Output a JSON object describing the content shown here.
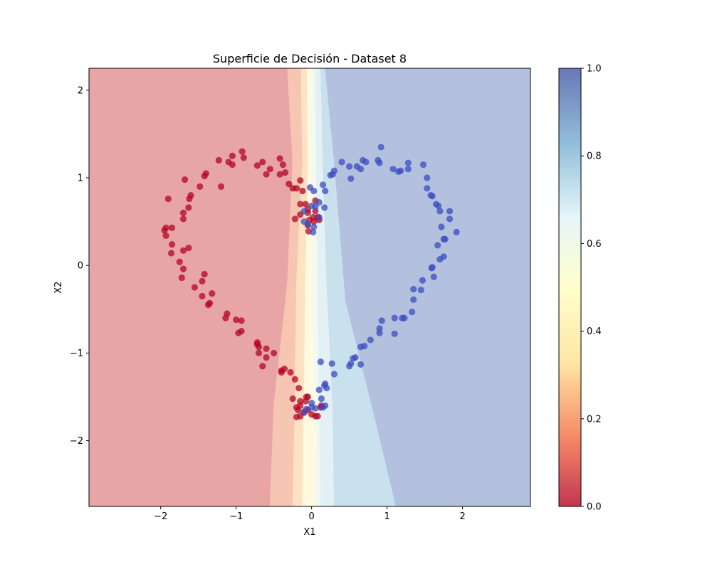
{
  "chart_data": {
    "type": "scatter",
    "title": "Superficie de Decisión - Dataset 8",
    "xlabel": "X1",
    "ylabel": "X2",
    "xlim": [
      -2.95,
      2.9
    ],
    "ylim": [
      -2.75,
      2.25
    ],
    "xticks": [
      -2,
      -1,
      0,
      1,
      2
    ],
    "yticks": [
      -2,
      -1,
      0,
      1,
      2
    ],
    "xtick_labels": [
      "−2",
      "−1",
      "0",
      "1",
      "2"
    ],
    "ytick_labels": [
      "−2",
      "−1",
      "0",
      "1",
      "2"
    ],
    "grid": false,
    "background": {
      "type": "filled_contour",
      "value_range": [
        0,
        1
      ],
      "boundaries": [
        {
          "level": 0.2,
          "points": [
            [
              -0.55,
              -2.75
            ],
            [
              -0.5,
              -1.6
            ],
            [
              -0.32,
              -0.2
            ],
            [
              -0.25,
              1.2
            ],
            [
              -0.32,
              2.25
            ]
          ]
        },
        {
          "level": 0.3,
          "points": [
            [
              -0.25,
              -2.75
            ],
            [
              -0.22,
              -1.6
            ],
            [
              -0.2,
              -0.2
            ],
            [
              -0.12,
              1.2
            ],
            [
              -0.14,
              2.25
            ]
          ]
        },
        {
          "level": 0.4,
          "points": [
            [
              -0.12,
              -2.75
            ],
            [
              -0.1,
              -1.6
            ],
            [
              -0.08,
              -0.2
            ],
            [
              -0.05,
              1.2
            ],
            [
              -0.06,
              2.25
            ]
          ]
        },
        {
          "level": 0.5,
          "points": [
            [
              0.05,
              -2.75
            ],
            [
              0.04,
              -1.6
            ],
            [
              0.0,
              -0.2
            ],
            [
              0.0,
              1.2
            ],
            [
              0.0,
              2.25
            ]
          ]
        },
        {
          "level": 0.6,
          "points": [
            [
              0.12,
              -2.75
            ],
            [
              0.1,
              -1.6
            ],
            [
              0.08,
              -0.2
            ],
            [
              0.06,
              1.2
            ],
            [
              0.05,
              2.25
            ]
          ]
        },
        {
          "level": 0.7,
          "points": [
            [
              0.3,
              -2.75
            ],
            [
              0.28,
              -1.6
            ],
            [
              0.2,
              -0.2
            ],
            [
              0.15,
              1.2
            ],
            [
              0.12,
              2.25
            ]
          ]
        },
        {
          "level": 0.8,
          "points": [
            [
              1.12,
              -2.75
            ],
            [
              0.8,
              -1.6
            ],
            [
              0.45,
              -0.4
            ],
            [
              0.3,
              1.2
            ],
            [
              0.18,
              2.25
            ]
          ]
        }
      ]
    },
    "series": [
      {
        "class": 0,
        "color": "#b40426",
        "points": [
          [
            -0.92,
            1.3
          ],
          [
            -1.05,
            1.25
          ],
          [
            -0.9,
            1.23
          ],
          [
            -1.23,
            1.2
          ],
          [
            -1.1,
            1.18
          ],
          [
            -1.05,
            1.15
          ],
          [
            -0.65,
            1.18
          ],
          [
            -0.72,
            1.14
          ],
          [
            -0.42,
            1.22
          ],
          [
            -0.38,
            1.15
          ],
          [
            -0.35,
            1.06
          ],
          [
            -0.42,
            1.04
          ],
          [
            -0.55,
            1.1
          ],
          [
            -0.6,
            1.04
          ],
          [
            -0.3,
            0.93
          ],
          [
            -1.4,
            1.05
          ],
          [
            -1.42,
            1.02
          ],
          [
            -1.68,
            0.98
          ],
          [
            -1.2,
            0.9
          ],
          [
            -1.48,
            0.9
          ],
          [
            -1.6,
            0.8
          ],
          [
            -1.62,
            0.76
          ],
          [
            -1.9,
            0.76
          ],
          [
            -1.63,
            0.66
          ],
          [
            -1.7,
            0.6
          ],
          [
            -1.7,
            0.53
          ],
          [
            -1.85,
            0.43
          ],
          [
            -1.93,
            0.43
          ],
          [
            -1.95,
            0.4
          ],
          [
            -1.93,
            0.34
          ],
          [
            -1.85,
            0.24
          ],
          [
            -1.63,
            0.2
          ],
          [
            -1.7,
            0.17
          ],
          [
            -1.86,
            0.14
          ],
          [
            -1.75,
            0.04
          ],
          [
            -1.7,
            -0.04
          ],
          [
            -1.42,
            -0.1
          ],
          [
            -1.72,
            -0.14
          ],
          [
            -1.45,
            -0.18
          ],
          [
            -1.55,
            -0.25
          ],
          [
            -1.32,
            -0.32
          ],
          [
            -1.45,
            -0.35
          ],
          [
            -1.35,
            -0.43
          ],
          [
            -1.37,
            -0.45
          ],
          [
            -1.12,
            -0.55
          ],
          [
            -1.14,
            -0.6
          ],
          [
            -1.0,
            -0.62
          ],
          [
            -0.93,
            -0.63
          ],
          [
            -0.93,
            -0.75
          ],
          [
            -0.97,
            -0.77
          ],
          [
            -0.72,
            -0.88
          ],
          [
            -0.72,
            -0.9
          ],
          [
            -0.7,
            -0.93
          ],
          [
            -0.6,
            -0.95
          ],
          [
            -0.5,
            -1.0
          ],
          [
            -0.7,
            -1.0
          ],
          [
            -0.6,
            -1.05
          ],
          [
            -0.65,
            -1.15
          ],
          [
            -0.36,
            -1.18
          ],
          [
            -0.4,
            -1.2
          ],
          [
            -0.28,
            -1.22
          ],
          [
            -0.4,
            -1.22
          ],
          [
            -0.22,
            -1.3
          ],
          [
            -0.17,
            -1.4
          ],
          [
            -0.05,
            -1.5
          ],
          [
            -0.07,
            -1.5
          ],
          [
            -0.25,
            -1.52
          ],
          [
            -0.15,
            -1.55
          ],
          [
            -0.08,
            -1.55
          ],
          [
            -0.15,
            -1.6
          ],
          [
            -0.2,
            -1.62
          ],
          [
            -0.18,
            -1.65
          ],
          [
            -0.05,
            -1.65
          ],
          [
            -0.1,
            -1.68
          ],
          [
            -0.15,
            -1.72
          ],
          [
            -0.2,
            -1.73
          ],
          [
            0.0,
            -1.7
          ],
          [
            0.05,
            -1.72
          ],
          [
            0.08,
            -1.72
          ],
          [
            0.13,
            -1.6
          ],
          [
            0.12,
            -1.62
          ],
          [
            -0.25,
            0.88
          ],
          [
            -0.15,
            0.97
          ],
          [
            -0.2,
            0.88
          ],
          [
            -0.12,
            0.85
          ],
          [
            -0.15,
            0.7
          ],
          [
            -0.08,
            0.7
          ],
          [
            -0.15,
            0.58
          ],
          [
            -0.22,
            0.53
          ],
          [
            -0.05,
            0.64
          ],
          [
            -0.05,
            0.6
          ],
          [
            -0.03,
            0.52
          ],
          [
            0.03,
            0.5
          ],
          [
            -0.05,
            0.46
          ],
          [
            -0.04,
            0.39
          ],
          [
            0.05,
            0.62
          ],
          [
            0.05,
            0.74
          ],
          [
            0.02,
            0.55
          ],
          [
            0.08,
            0.55
          ],
          [
            0.1,
            0.52
          ]
        ]
      },
      {
        "class": 1,
        "color": "#3b4cc0",
        "points": [
          [
            0.92,
            1.35
          ],
          [
            0.4,
            1.18
          ],
          [
            0.68,
            1.2
          ],
          [
            0.72,
            1.18
          ],
          [
            0.88,
            1.2
          ],
          [
            0.9,
            1.17
          ],
          [
            0.3,
            1.08
          ],
          [
            0.28,
            1.04
          ],
          [
            0.25,
            1.03
          ],
          [
            0.5,
            1.13
          ],
          [
            0.6,
            1.13
          ],
          [
            0.65,
            1.1
          ],
          [
            0.52,
            0.99
          ],
          [
            1.28,
            1.17
          ],
          [
            1.28,
            1.1
          ],
          [
            1.48,
            1.15
          ],
          [
            1.08,
            1.1
          ],
          [
            1.18,
            1.08
          ],
          [
            1.15,
            1.07
          ],
          [
            1.53,
            1.0
          ],
          [
            1.53,
            0.88
          ],
          [
            1.58,
            0.8
          ],
          [
            1.6,
            0.79
          ],
          [
            1.65,
            0.7
          ],
          [
            1.68,
            0.68
          ],
          [
            1.7,
            0.62
          ],
          [
            1.83,
            0.62
          ],
          [
            1.83,
            0.53
          ],
          [
            1.92,
            0.38
          ],
          [
            1.72,
            0.44
          ],
          [
            1.75,
            0.3
          ],
          [
            1.77,
            0.3
          ],
          [
            1.67,
            0.23
          ],
          [
            1.75,
            0.1
          ],
          [
            1.7,
            0.07
          ],
          [
            1.6,
            -0.02
          ],
          [
            1.59,
            -0.03
          ],
          [
            1.62,
            -0.13
          ],
          [
            1.47,
            -0.17
          ],
          [
            1.35,
            -0.27
          ],
          [
            1.45,
            -0.28
          ],
          [
            1.35,
            -0.39
          ],
          [
            1.33,
            -0.53
          ],
          [
            1.23,
            -0.6
          ],
          [
            1.2,
            -0.6
          ],
          [
            1.1,
            -0.6
          ],
          [
            0.93,
            -0.63
          ],
          [
            0.9,
            -0.72
          ],
          [
            0.9,
            -0.77
          ],
          [
            1.1,
            -0.78
          ],
          [
            0.78,
            -0.85
          ],
          [
            0.7,
            -0.92
          ],
          [
            0.65,
            -0.93
          ],
          [
            0.58,
            -1.05
          ],
          [
            0.55,
            -1.06
          ],
          [
            0.52,
            -1.12
          ],
          [
            0.65,
            -1.13
          ],
          [
            0.5,
            -1.15
          ],
          [
            0.12,
            -1.1
          ],
          [
            0.27,
            -1.12
          ],
          [
            0.3,
            -1.24
          ],
          [
            0.18,
            -1.35
          ],
          [
            0.17,
            -1.37
          ],
          [
            0.2,
            -1.4
          ],
          [
            0.1,
            -1.42
          ],
          [
            0.13,
            -1.52
          ],
          [
            0.0,
            -1.57
          ],
          [
            0.05,
            -1.63
          ],
          [
            0.0,
            -1.62
          ],
          [
            -0.07,
            -1.64
          ],
          [
            -0.1,
            -1.67
          ],
          [
            0.18,
            -1.6
          ],
          [
            0.15,
            -1.62
          ],
          [
            0.03,
            0.85
          ],
          [
            0.15,
            0.92
          ],
          [
            0.18,
            0.85
          ],
          [
            -0.02,
            0.89
          ],
          [
            0.1,
            0.72
          ],
          [
            0.17,
            0.66
          ],
          [
            0.05,
            0.67
          ],
          [
            0.0,
            0.68
          ],
          [
            -0.1,
            0.62
          ],
          [
            -0.1,
            0.5
          ],
          [
            0.03,
            0.44
          ],
          [
            0.02,
            0.38
          ],
          [
            -0.05,
            0.47
          ],
          [
            0.1,
            0.55
          ]
        ]
      }
    ],
    "colorbar": {
      "range": [
        0,
        1
      ],
      "ticks": [
        0.0,
        0.2,
        0.4,
        0.6,
        0.8,
        1.0
      ],
      "tick_labels": [
        "0.0",
        "0.2",
        "0.4",
        "0.6",
        "0.8",
        "1.0"
      ],
      "colormap": "RdYlBu"
    },
    "colors": {
      "level_fills": [
        "#e8a5a6",
        "#f7c6b3",
        "#fde3c4",
        "#fffae0",
        "#f1f9f1",
        "#e3f1f5",
        "#c9e1ec",
        "#b3c1de"
      ],
      "colormap_stops": [
        "#b40426",
        "#f46d43",
        "#fee090",
        "#ffffbf",
        "#e0f3f8",
        "#74add1",
        "#4456a6"
      ]
    }
  }
}
